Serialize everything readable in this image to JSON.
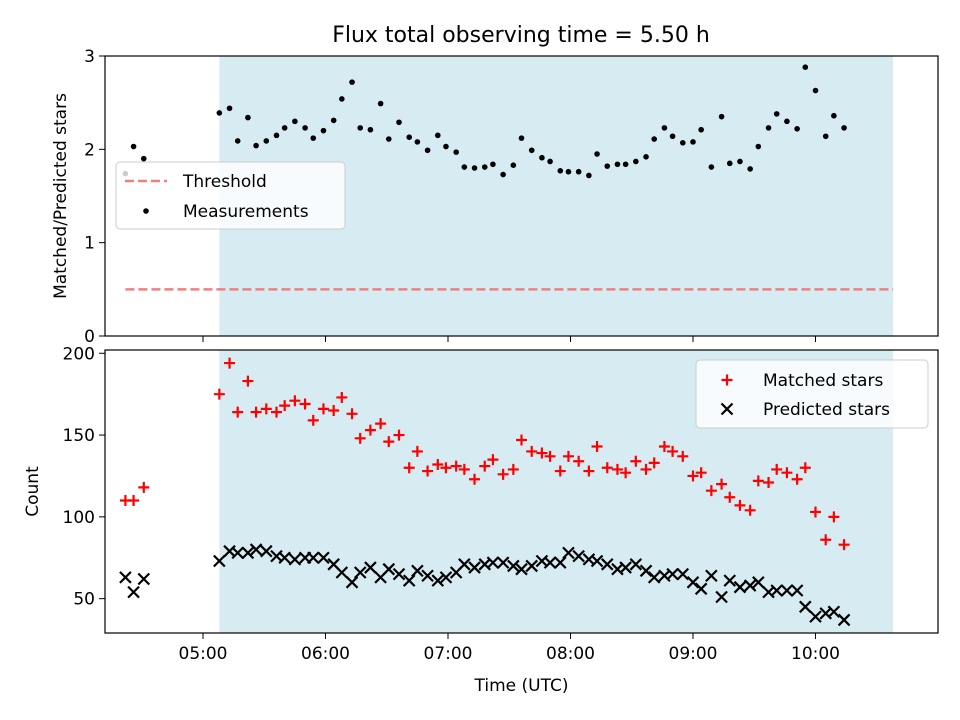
{
  "title": "Flux total observing time = 5.50 h",
  "colors": {
    "shade": "#add8e6",
    "threshold": "#f08080",
    "matched": "#ff0000",
    "predicted": "#000000",
    "measurement": "#000000"
  },
  "chart_data": [
    {
      "type": "scatter",
      "ylabel": "Matched/Predicted stars",
      "xlim": [
        "04:12",
        "11:00"
      ],
      "ylim": [
        0,
        3
      ],
      "yticks": [
        0,
        1,
        2,
        3
      ],
      "shaded_span": [
        "05:08",
        "10:38"
      ],
      "legend_position": "center-left",
      "legend": [
        "Threshold",
        "Measurements"
      ],
      "threshold": {
        "name": "Threshold",
        "y": 0.5,
        "x": [
          "04:22",
          "10:38"
        ]
      },
      "measurements": {
        "name": "Measurements",
        "points": [
          [
            "04:22",
            1.74
          ],
          [
            "04:26",
            2.03
          ],
          [
            "04:31",
            1.9
          ],
          [
            "05:08",
            2.39
          ],
          [
            "05:13",
            2.44
          ],
          [
            "05:17",
            2.09
          ],
          [
            "05:22",
            2.34
          ],
          [
            "05:26",
            2.04
          ],
          [
            "05:31",
            2.09
          ],
          [
            "05:36",
            2.15
          ],
          [
            "05:40",
            2.23
          ],
          [
            "05:45",
            2.3
          ],
          [
            "05:50",
            2.23
          ],
          [
            "05:54",
            2.12
          ],
          [
            "05:59",
            2.2
          ],
          [
            "06:04",
            2.31
          ],
          [
            "06:08",
            2.54
          ],
          [
            "06:13",
            2.72
          ],
          [
            "06:17",
            2.23
          ],
          [
            "06:22",
            2.21
          ],
          [
            "06:27",
            2.49
          ],
          [
            "06:31",
            2.11
          ],
          [
            "06:36",
            2.29
          ],
          [
            "06:41",
            2.13
          ],
          [
            "06:45",
            2.08
          ],
          [
            "06:50",
            1.99
          ],
          [
            "06:55",
            2.15
          ],
          [
            "06:59",
            2.03
          ],
          [
            "07:04",
            1.97
          ],
          [
            "07:08",
            1.81
          ],
          [
            "07:13",
            1.8
          ],
          [
            "07:18",
            1.81
          ],
          [
            "07:22",
            1.84
          ],
          [
            "07:27",
            1.73
          ],
          [
            "07:32",
            1.83
          ],
          [
            "07:36",
            2.12
          ],
          [
            "07:41",
            1.99
          ],
          [
            "07:46",
            1.91
          ],
          [
            "07:50",
            1.87
          ],
          [
            "07:55",
            1.77
          ],
          [
            "07:59",
            1.76
          ],
          [
            "08:04",
            1.76
          ],
          [
            "08:09",
            1.72
          ],
          [
            "08:13",
            1.95
          ],
          [
            "08:18",
            1.82
          ],
          [
            "08:23",
            1.84
          ],
          [
            "08:27",
            1.84
          ],
          [
            "08:32",
            1.87
          ],
          [
            "08:37",
            1.92
          ],
          [
            "08:41",
            2.11
          ],
          [
            "08:46",
            2.23
          ],
          [
            "08:50",
            2.14
          ],
          [
            "08:55",
            2.07
          ],
          [
            "09:00",
            2.08
          ],
          [
            "09:04",
            2.21
          ],
          [
            "09:09",
            1.81
          ],
          [
            "09:14",
            2.35
          ],
          [
            "09:18",
            1.85
          ],
          [
            "09:23",
            1.87
          ],
          [
            "09:28",
            1.79
          ],
          [
            "09:32",
            2.03
          ],
          [
            "09:37",
            2.23
          ],
          [
            "09:41",
            2.38
          ],
          [
            "09:46",
            2.3
          ],
          [
            "09:51",
            2.22
          ],
          [
            "09:55",
            2.88
          ],
          [
            "10:00",
            2.63
          ],
          [
            "10:05",
            2.14
          ],
          [
            "10:09",
            2.36
          ],
          [
            "10:14",
            2.23
          ]
        ]
      }
    },
    {
      "type": "scatter",
      "xlabel": "Time (UTC)",
      "ylabel": "Count",
      "xlim": [
        "04:12",
        "11:00"
      ],
      "ylim": [
        29,
        202
      ],
      "yticks": [
        50,
        100,
        150,
        200
      ],
      "xticks": [
        "05:00",
        "06:00",
        "07:00",
        "08:00",
        "09:00",
        "10:00"
      ],
      "shaded_span": [
        "05:08",
        "10:38"
      ],
      "legend_position": "top-right",
      "legend": [
        "Matched stars",
        "Predicted stars"
      ],
      "series": [
        {
          "name": "Matched stars",
          "marker": "plus",
          "points": [
            [
              "04:22",
              110
            ],
            [
              "04:26",
              110
            ],
            [
              "04:31",
              118
            ],
            [
              "05:08",
              175
            ],
            [
              "05:13",
              194
            ],
            [
              "05:17",
              164
            ],
            [
              "05:22",
              183
            ],
            [
              "05:26",
              164
            ],
            [
              "05:31",
              166
            ],
            [
              "05:36",
              164
            ],
            [
              "05:40",
              168
            ],
            [
              "05:45",
              171
            ],
            [
              "05:50",
              169
            ],
            [
              "05:54",
              159
            ],
            [
              "05:59",
              166
            ],
            [
              "06:04",
              165
            ],
            [
              "06:08",
              173
            ],
            [
              "06:13",
              163
            ],
            [
              "06:17",
              148
            ],
            [
              "06:22",
              153
            ],
            [
              "06:27",
              157
            ],
            [
              "06:31",
              146
            ],
            [
              "06:36",
              150
            ],
            [
              "06:41",
              130
            ],
            [
              "06:45",
              140
            ],
            [
              "06:50",
              128
            ],
            [
              "06:55",
              132
            ],
            [
              "06:59",
              130
            ],
            [
              "07:04",
              131
            ],
            [
              "07:08",
              129
            ],
            [
              "07:13",
              123
            ],
            [
              "07:18",
              131
            ],
            [
              "07:22",
              135
            ],
            [
              "07:27",
              126
            ],
            [
              "07:32",
              129
            ],
            [
              "07:36",
              147
            ],
            [
              "07:41",
              140
            ],
            [
              "07:46",
              139
            ],
            [
              "07:50",
              137
            ],
            [
              "07:55",
              128
            ],
            [
              "07:59",
              137
            ],
            [
              "08:04",
              134
            ],
            [
              "08:09",
              128
            ],
            [
              "08:13",
              143
            ],
            [
              "08:18",
              130
            ],
            [
              "08:23",
              129
            ],
            [
              "08:27",
              127
            ],
            [
              "08:32",
              134
            ],
            [
              "08:37",
              129
            ],
            [
              "08:41",
              133
            ],
            [
              "08:46",
              143
            ],
            [
              "08:50",
              140
            ],
            [
              "08:55",
              137
            ],
            [
              "09:00",
              125
            ],
            [
              "09:04",
              127
            ],
            [
              "09:09",
              116
            ],
            [
              "09:14",
              120
            ],
            [
              "09:18",
              112
            ],
            [
              "09:23",
              107
            ],
            [
              "09:28",
              104
            ],
            [
              "09:32",
              122
            ],
            [
              "09:37",
              121
            ],
            [
              "09:41",
              129
            ],
            [
              "09:46",
              127
            ],
            [
              "09:51",
              123
            ],
            [
              "09:55",
              130
            ],
            [
              "10:00",
              103
            ],
            [
              "10:05",
              86
            ],
            [
              "10:09",
              100
            ],
            [
              "10:14",
              83
            ]
          ]
        },
        {
          "name": "Predicted stars",
          "marker": "x",
          "points": [
            [
              "04:22",
              63
            ],
            [
              "04:26",
              54
            ],
            [
              "04:31",
              62
            ],
            [
              "05:08",
              73
            ],
            [
              "05:13",
              79
            ],
            [
              "05:17",
              78
            ],
            [
              "05:22",
              78
            ],
            [
              "05:26",
              80
            ],
            [
              "05:31",
              79
            ],
            [
              "05:36",
              76
            ],
            [
              "05:40",
              75
            ],
            [
              "05:45",
              74
            ],
            [
              "05:50",
              75
            ],
            [
              "05:54",
              75
            ],
            [
              "05:59",
              75
            ],
            [
              "06:04",
              71
            ],
            [
              "06:08",
              66
            ],
            [
              "06:13",
              60
            ],
            [
              "06:17",
              66
            ],
            [
              "06:22",
              69
            ],
            [
              "06:27",
              63
            ],
            [
              "06:31",
              68
            ],
            [
              "06:36",
              65
            ],
            [
              "06:41",
              61
            ],
            [
              "06:45",
              67
            ],
            [
              "06:50",
              64
            ],
            [
              "06:55",
              61
            ],
            [
              "06:59",
              63
            ],
            [
              "07:04",
              66
            ],
            [
              "07:08",
              71
            ],
            [
              "07:13",
              69
            ],
            [
              "07:18",
              71
            ],
            [
              "07:22",
              72
            ],
            [
              "07:27",
              72
            ],
            [
              "07:32",
              70
            ],
            [
              "07:36",
              68
            ],
            [
              "07:41",
              70
            ],
            [
              "07:46",
              73
            ],
            [
              "07:50",
              72
            ],
            [
              "07:55",
              72
            ],
            [
              "07:59",
              78
            ],
            [
              "08:04",
              76
            ],
            [
              "08:09",
              74
            ],
            [
              "08:13",
              73
            ],
            [
              "08:18",
              71
            ],
            [
              "08:23",
              68
            ],
            [
              "08:27",
              69
            ],
            [
              "08:32",
              71
            ],
            [
              "08:37",
              67
            ],
            [
              "08:41",
              63
            ],
            [
              "08:46",
              64
            ],
            [
              "08:50",
              65
            ],
            [
              "08:55",
              65
            ],
            [
              "09:00",
              60
            ],
            [
              "09:04",
              56
            ],
            [
              "09:09",
              64
            ],
            [
              "09:14",
              51
            ],
            [
              "09:18",
              61
            ],
            [
              "09:23",
              57
            ],
            [
              "09:28",
              58
            ],
            [
              "09:32",
              60
            ],
            [
              "09:37",
              54
            ],
            [
              "09:41",
              55
            ],
            [
              "09:46",
              55
            ],
            [
              "09:51",
              55
            ],
            [
              "09:55",
              45
            ],
            [
              "10:00",
              39
            ],
            [
              "10:05",
              41
            ],
            [
              "10:09",
              42
            ],
            [
              "10:14",
              37
            ]
          ]
        }
      ]
    }
  ]
}
